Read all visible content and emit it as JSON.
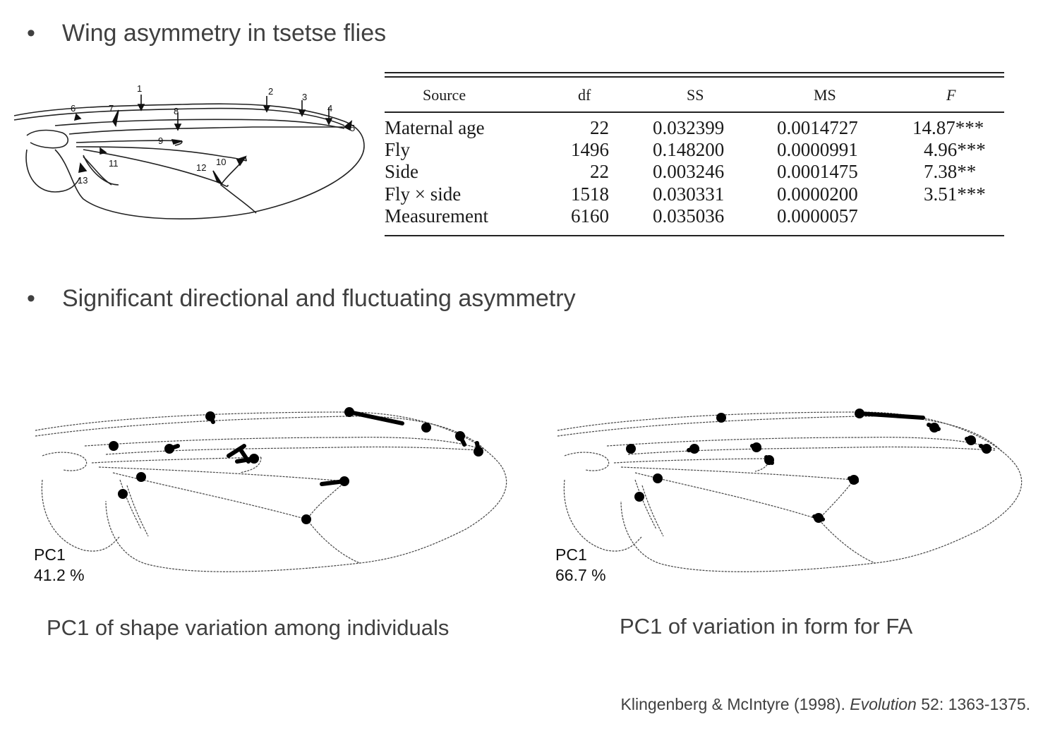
{
  "bullets": [
    {
      "symbol": "•",
      "text": "Wing asymmetry in tsetse flies"
    },
    {
      "symbol": "•",
      "text": "Significant directional and fluctuating asymmetry"
    }
  ],
  "landmarks": [
    "1",
    "2",
    "3",
    "4",
    "5",
    "6",
    "7",
    "8",
    "9",
    "10",
    "11",
    "12",
    "13"
  ],
  "table": {
    "headers": [
      "Source",
      "df",
      "SS",
      "MS",
      "F"
    ],
    "rows": [
      {
        "source": "Maternal age",
        "df": "22",
        "ss": "0.032399",
        "ms": "0.0014727",
        "f": "14.87***"
      },
      {
        "source": "Fly",
        "df": "1496",
        "ss": "0.148200",
        "ms": "0.0000991",
        "f": "4.96***"
      },
      {
        "source": "Side",
        "df": "22",
        "ss": "0.003246",
        "ms": "0.0001475",
        "f": "7.38**"
      },
      {
        "source": "Fly × side",
        "df": "1518",
        "ss": "0.030331",
        "ms": "0.0000200",
        "f": "3.51***"
      },
      {
        "source": "Measurement",
        "df": "6160",
        "ss": "0.035036",
        "ms": "0.0000057",
        "f": ""
      }
    ]
  },
  "panels": [
    {
      "pc_label": "PC1",
      "pc_value": "41.2 %",
      "caption": "PC1 of shape variation among individuals"
    },
    {
      "pc_label": "PC1",
      "pc_value": "66.7 %",
      "caption": "PC1 of variation in form for FA"
    }
  ],
  "citation": {
    "authors": "Klingenberg & McIntyre (1998). ",
    "journal": "Evolution",
    "rest": " 52: 1363-1375."
  }
}
